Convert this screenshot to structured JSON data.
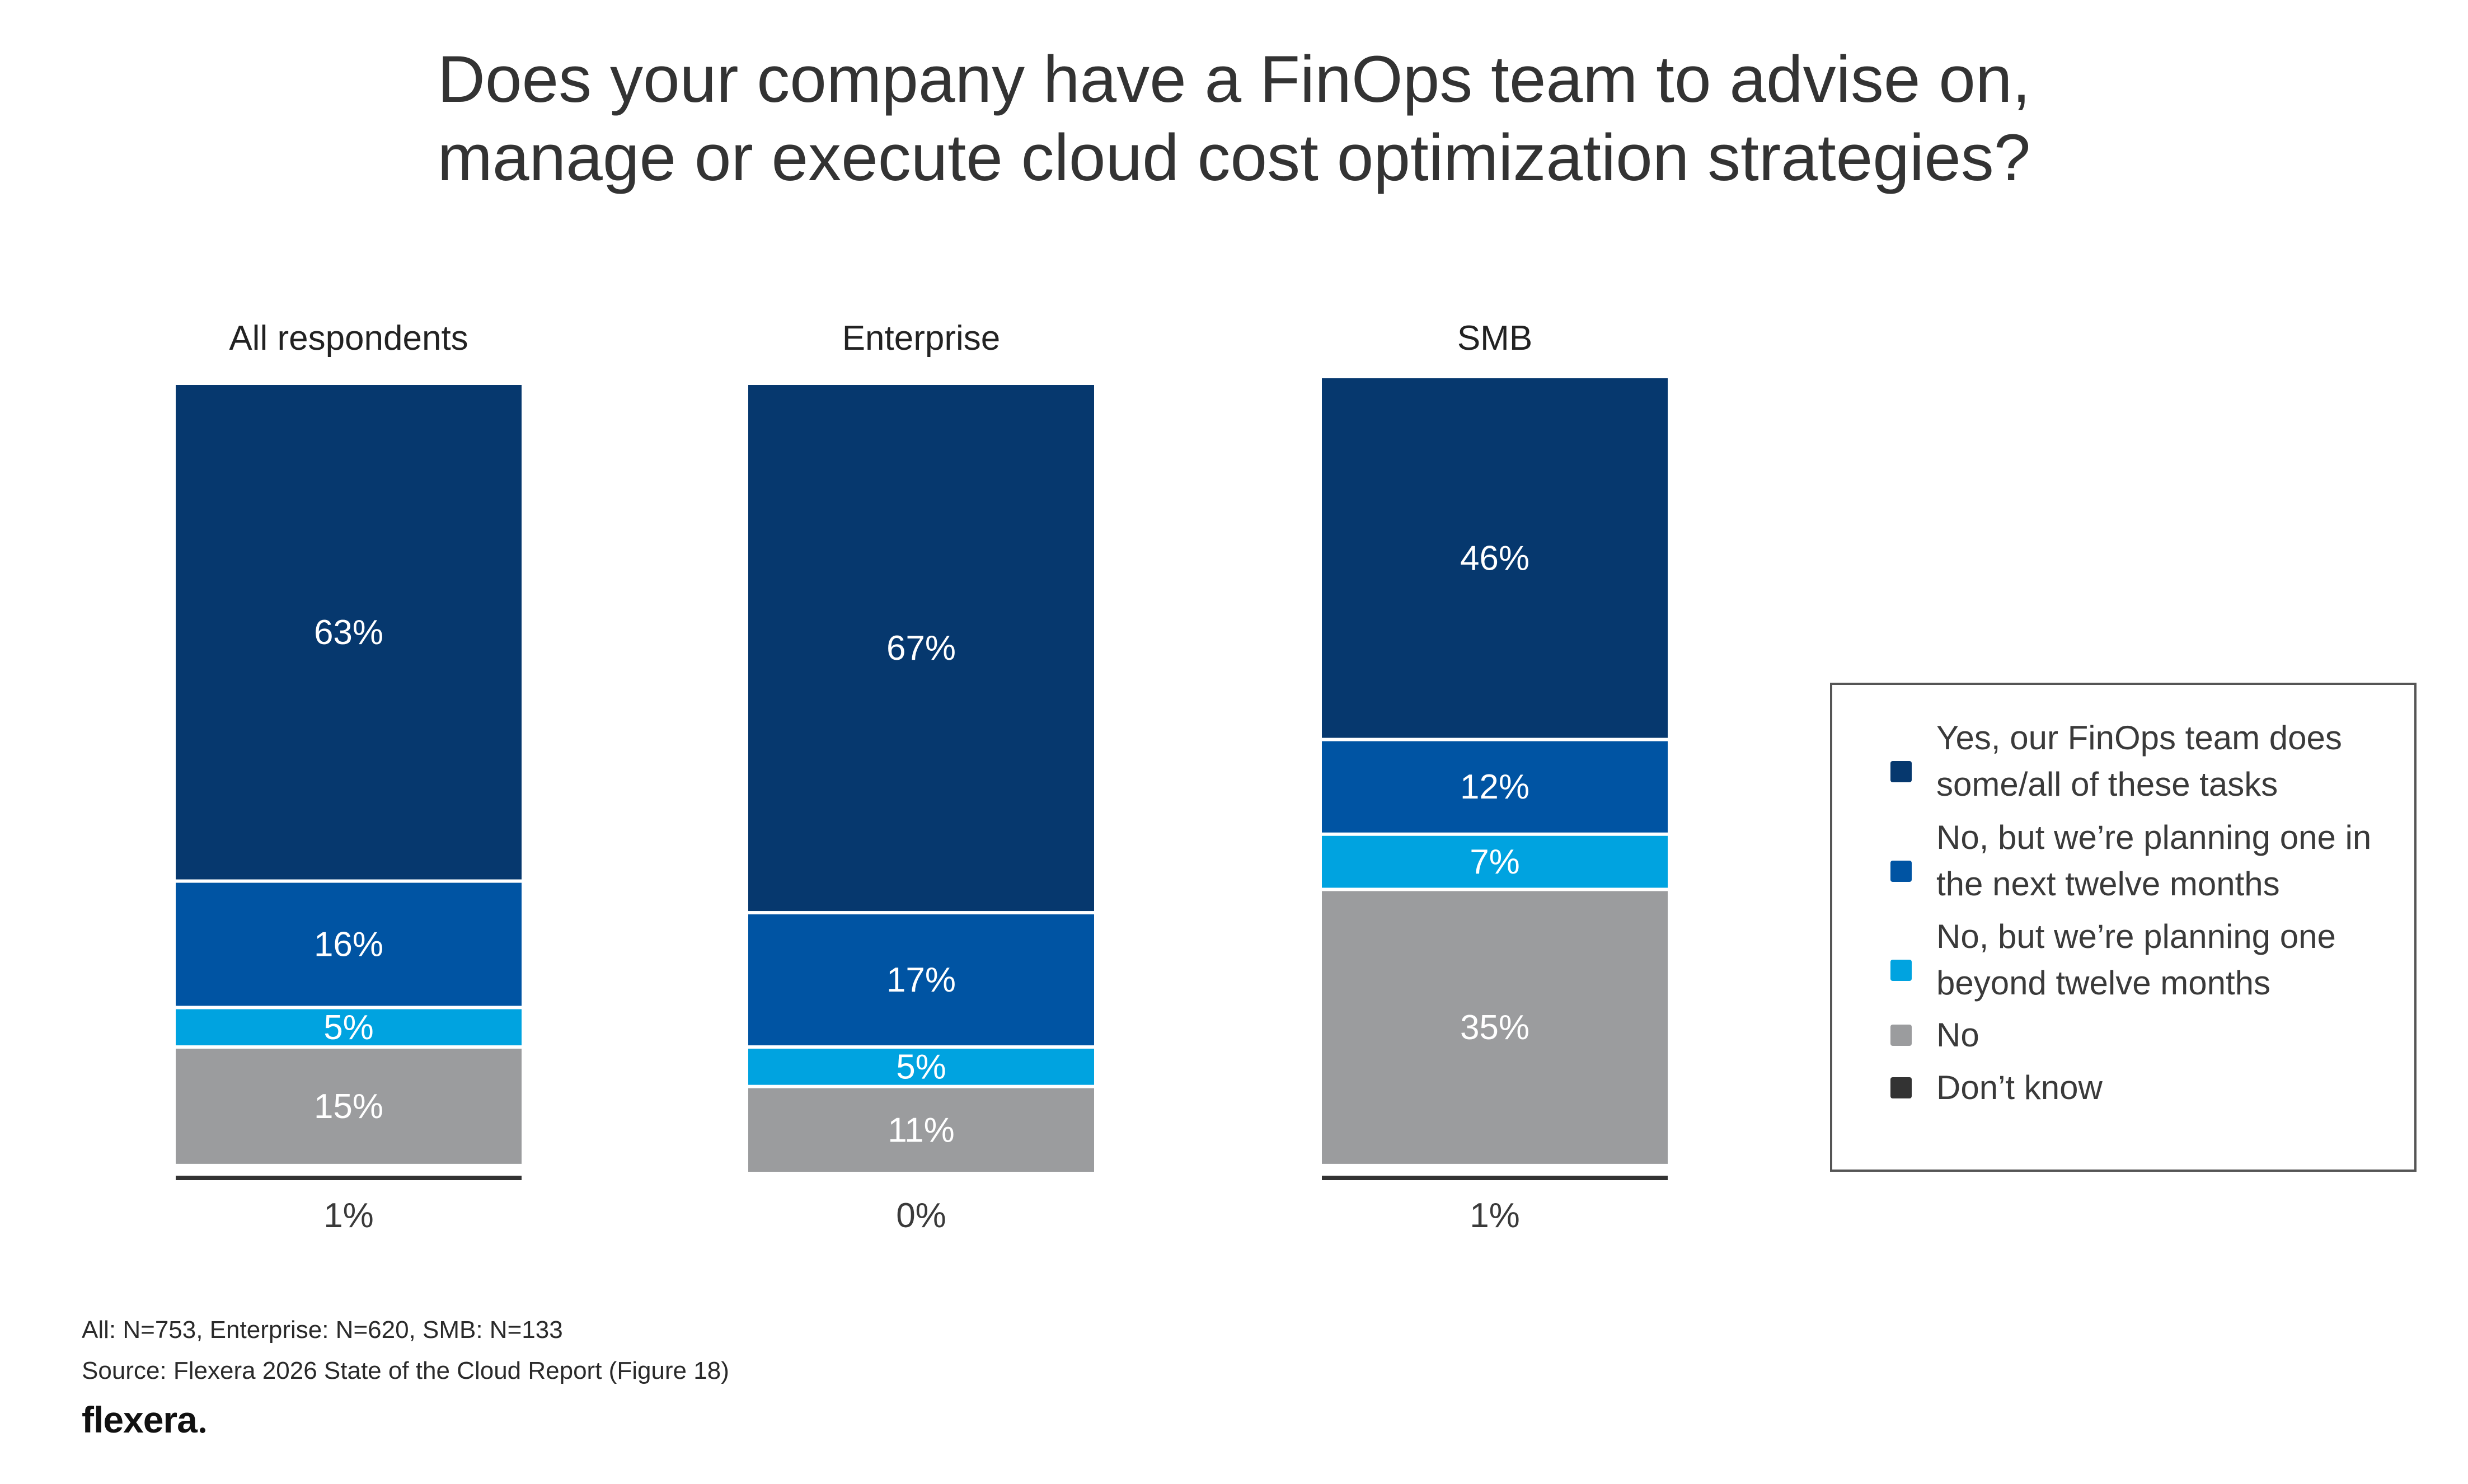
{
  "chart_data": {
    "type": "bar",
    "stacked": true,
    "title": [
      "Does your company have a FinOps team to advise on,",
      "manage or execute cloud cost optimization strategies?"
    ],
    "categories": [
      "All respondents",
      "Enterprise",
      "SMB"
    ],
    "series": [
      {
        "name": "Yes, our FinOps team does some/all of these tasks",
        "legend_lines": [
          "Yes, our FinOps team does",
          "some/all of these tasks"
        ],
        "color": "#06386e",
        "values": [
          63,
          67,
          46
        ],
        "labels": [
          "63%",
          "67%",
          "46%"
        ]
      },
      {
        "name": "No, but we’re planning one in the next twelve months",
        "legend_lines": [
          "No, but we’re planning one in",
          "the next twelve months"
        ],
        "color": "#0054a3",
        "values": [
          16,
          17,
          12
        ],
        "labels": [
          "16%",
          "17%",
          "12%"
        ]
      },
      {
        "name": "No, but we’re planning one beyond twelve months",
        "legend_lines": [
          "No, but we’re planning one",
          "beyond twelve months"
        ],
        "color": "#00a3e0",
        "values": [
          5,
          5,
          7
        ],
        "labels": [
          "5%",
          "5%",
          "7%"
        ]
      },
      {
        "name": "No",
        "legend_lines": [
          "No"
        ],
        "color": "#9b9c9e",
        "values": [
          15,
          11,
          35
        ],
        "labels": [
          "15%",
          "11%",
          "35%"
        ]
      },
      {
        "name": "Don’t know",
        "legend_lines": [
          "Don’t know"
        ],
        "color": "#333333",
        "values": [
          1,
          0,
          1
        ],
        "labels": [
          "1%",
          "0%",
          "1%"
        ]
      }
    ],
    "ylim": [
      0,
      100
    ],
    "legend_position": "right"
  },
  "footnotes": {
    "sample": "All: N=753, Enterprise: N=620, SMB: N=133",
    "source": "Source: Flexera 2026 State of the Cloud Report (Figure 18)"
  },
  "brand": {
    "logo": "flexera"
  }
}
